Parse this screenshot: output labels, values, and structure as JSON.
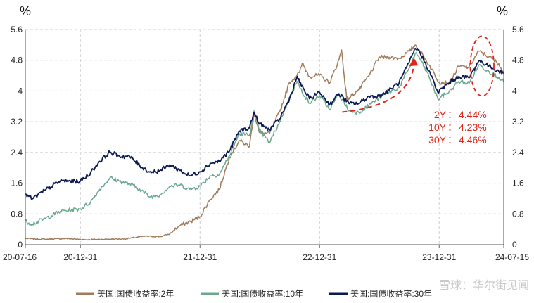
{
  "chart_data": {
    "type": "line",
    "title": "",
    "unit_left": "%",
    "unit_right": "%",
    "ylim": [
      0,
      5.6
    ],
    "yticks": [
      "0",
      "0.8",
      "1.6",
      "2.4",
      "3.2",
      "4",
      "4.8",
      "5.6"
    ],
    "yticks_right": [
      "0",
      "0.8",
      "1.6",
      "2.4",
      "3.2",
      "4",
      "4.8",
      "5.6"
    ],
    "xlim": [
      "2020-07-16",
      "2024-07-15"
    ],
    "xticks": [
      {
        "date": "2020-07-16",
        "label": "20-07-16"
      },
      {
        "date": "2020-12-31",
        "label": "20-12-31"
      },
      {
        "date": "2021-12-31",
        "label": "21-12-31"
      },
      {
        "date": "2022-12-31",
        "label": "22-12-31"
      },
      {
        "date": "2023-12-31",
        "label": "23-12-31"
      },
      {
        "date": "2024-07-15",
        "label": "24-07-15"
      }
    ],
    "grid": true,
    "legend_position": "bottom",
    "series": [
      {
        "name": "美国:国债收益率:2年",
        "color": "#a07c5c",
        "points": [
          [
            "2020-07-16",
            0.16
          ],
          [
            "2020-09-15",
            0.14
          ],
          [
            "2020-11-15",
            0.16
          ],
          [
            "2021-01-15",
            0.13
          ],
          [
            "2021-03-15",
            0.14
          ],
          [
            "2021-05-15",
            0.15
          ],
          [
            "2021-07-15",
            0.22
          ],
          [
            "2021-09-01",
            0.21
          ],
          [
            "2021-09-30",
            0.28
          ],
          [
            "2021-10-31",
            0.5
          ],
          [
            "2021-12-01",
            0.6
          ],
          [
            "2021-12-31",
            0.73
          ],
          [
            "2022-01-31",
            1.18
          ],
          [
            "2022-02-28",
            1.44
          ],
          [
            "2022-03-31",
            2.28
          ],
          [
            "2022-04-30",
            2.71
          ],
          [
            "2022-05-31",
            2.56
          ],
          [
            "2022-06-14",
            3.43
          ],
          [
            "2022-06-30",
            2.92
          ],
          [
            "2022-07-31",
            2.89
          ],
          [
            "2022-08-31",
            3.45
          ],
          [
            "2022-09-30",
            4.22
          ],
          [
            "2022-10-31",
            4.48
          ],
          [
            "2022-11-08",
            4.72
          ],
          [
            "2022-11-30",
            4.38
          ],
          [
            "2022-12-31",
            4.41
          ],
          [
            "2023-01-31",
            4.21
          ],
          [
            "2023-02-28",
            4.81
          ],
          [
            "2023-03-08",
            5.07
          ],
          [
            "2023-03-24",
            3.78
          ],
          [
            "2023-04-30",
            4.04
          ],
          [
            "2023-05-31",
            4.4
          ],
          [
            "2023-06-30",
            4.87
          ],
          [
            "2023-07-31",
            4.88
          ],
          [
            "2023-08-31",
            4.85
          ],
          [
            "2023-09-30",
            5.03
          ],
          [
            "2023-10-19",
            5.2
          ],
          [
            "2023-10-31",
            5.07
          ],
          [
            "2023-11-30",
            4.68
          ],
          [
            "2023-12-31",
            4.23
          ],
          [
            "2024-01-31",
            4.21
          ],
          [
            "2024-02-29",
            4.64
          ],
          [
            "2024-03-31",
            4.62
          ],
          [
            "2024-04-30",
            5.04
          ],
          [
            "2024-05-31",
            4.89
          ],
          [
            "2024-06-30",
            4.71
          ],
          [
            "2024-07-15",
            4.44
          ]
        ]
      },
      {
        "name": "美国:国债收益率:10年",
        "color": "#6aa88e",
        "points": [
          [
            "2020-07-16",
            0.61
          ],
          [
            "2020-08-06",
            0.54
          ],
          [
            "2020-09-15",
            0.68
          ],
          [
            "2020-10-31",
            0.87
          ],
          [
            "2020-12-31",
            0.93
          ],
          [
            "2021-01-31",
            1.11
          ],
          [
            "2021-02-28",
            1.44
          ],
          [
            "2021-03-31",
            1.74
          ],
          [
            "2021-04-30",
            1.65
          ],
          [
            "2021-05-31",
            1.58
          ],
          [
            "2021-06-30",
            1.45
          ],
          [
            "2021-07-31",
            1.24
          ],
          [
            "2021-08-31",
            1.3
          ],
          [
            "2021-09-30",
            1.52
          ],
          [
            "2021-10-31",
            1.55
          ],
          [
            "2021-11-30",
            1.44
          ],
          [
            "2021-12-31",
            1.52
          ],
          [
            "2022-01-31",
            1.79
          ],
          [
            "2022-02-28",
            1.83
          ],
          [
            "2022-03-31",
            2.32
          ],
          [
            "2022-04-30",
            2.89
          ],
          [
            "2022-05-31",
            2.85
          ],
          [
            "2022-06-14",
            3.48
          ],
          [
            "2022-06-30",
            2.98
          ],
          [
            "2022-07-31",
            2.65
          ],
          [
            "2022-08-31",
            3.19
          ],
          [
            "2022-09-30",
            3.83
          ],
          [
            "2022-10-24",
            4.25
          ],
          [
            "2022-10-31",
            4.1
          ],
          [
            "2022-11-30",
            3.68
          ],
          [
            "2022-12-31",
            3.88
          ],
          [
            "2023-01-31",
            3.52
          ],
          [
            "2023-02-28",
            3.92
          ],
          [
            "2023-03-31",
            3.48
          ],
          [
            "2023-04-30",
            3.44
          ],
          [
            "2023-05-31",
            3.64
          ],
          [
            "2023-06-30",
            3.81
          ],
          [
            "2023-07-31",
            3.97
          ],
          [
            "2023-08-31",
            4.09
          ],
          [
            "2023-09-30",
            4.59
          ],
          [
            "2023-10-19",
            4.98
          ],
          [
            "2023-10-31",
            4.88
          ],
          [
            "2023-11-30",
            4.37
          ],
          [
            "2023-12-27",
            3.79
          ],
          [
            "2024-01-31",
            3.99
          ],
          [
            "2024-02-29",
            4.25
          ],
          [
            "2024-03-31",
            4.2
          ],
          [
            "2024-04-30",
            4.68
          ],
          [
            "2024-05-31",
            4.51
          ],
          [
            "2024-06-30",
            4.36
          ],
          [
            "2024-07-15",
            4.23
          ]
        ]
      },
      {
        "name": "美国:国债收益率:30年",
        "color": "#0d1a52",
        "points": [
          [
            "2020-07-16",
            1.32
          ],
          [
            "2020-08-06",
            1.19
          ],
          [
            "2020-09-15",
            1.42
          ],
          [
            "2020-10-31",
            1.66
          ],
          [
            "2020-12-31",
            1.65
          ],
          [
            "2021-01-31",
            1.87
          ],
          [
            "2021-02-28",
            2.17
          ],
          [
            "2021-03-31",
            2.41
          ],
          [
            "2021-04-30",
            2.3
          ],
          [
            "2021-05-31",
            2.29
          ],
          [
            "2021-06-30",
            2.06
          ],
          [
            "2021-07-31",
            1.89
          ],
          [
            "2021-08-31",
            1.93
          ],
          [
            "2021-09-30",
            2.08
          ],
          [
            "2021-10-31",
            1.93
          ],
          [
            "2021-11-30",
            1.79
          ],
          [
            "2021-12-31",
            1.9
          ],
          [
            "2022-01-31",
            2.11
          ],
          [
            "2022-02-28",
            2.17
          ],
          [
            "2022-03-31",
            2.44
          ],
          [
            "2022-04-30",
            2.96
          ],
          [
            "2022-05-31",
            3.04
          ],
          [
            "2022-06-14",
            3.44
          ],
          [
            "2022-06-30",
            3.14
          ],
          [
            "2022-07-31",
            3.0
          ],
          [
            "2022-08-31",
            3.27
          ],
          [
            "2022-09-30",
            3.79
          ],
          [
            "2022-10-24",
            4.38
          ],
          [
            "2022-10-31",
            4.22
          ],
          [
            "2022-11-30",
            3.8
          ],
          [
            "2022-12-31",
            3.97
          ],
          [
            "2023-01-31",
            3.65
          ],
          [
            "2023-02-28",
            3.93
          ],
          [
            "2023-03-31",
            3.67
          ],
          [
            "2023-04-30",
            3.68
          ],
          [
            "2023-05-31",
            3.86
          ],
          [
            "2023-06-30",
            3.86
          ],
          [
            "2023-07-31",
            4.02
          ],
          [
            "2023-08-31",
            4.22
          ],
          [
            "2023-09-30",
            4.73
          ],
          [
            "2023-10-19",
            5.11
          ],
          [
            "2023-10-31",
            5.04
          ],
          [
            "2023-11-30",
            4.53
          ],
          [
            "2023-12-27",
            3.96
          ],
          [
            "2024-01-31",
            4.22
          ],
          [
            "2024-02-29",
            4.38
          ],
          [
            "2024-03-31",
            4.34
          ],
          [
            "2024-04-30",
            4.79
          ],
          [
            "2024-05-31",
            4.65
          ],
          [
            "2024-06-30",
            4.51
          ],
          [
            "2024-07-15",
            4.46
          ]
        ]
      }
    ],
    "annotations": [
      {
        "label": "2Y",
        "value": "4.44%"
      },
      {
        "label": "10Y",
        "value": "4.23%"
      },
      {
        "label": "30Y",
        "value": "4.46%"
      }
    ],
    "annotation_separator": "：",
    "annotation_color": "#e0261b",
    "arrow": {
      "from": [
        "2023-03-10",
        3.45
      ],
      "to": [
        "2023-10-15",
        4.7
      ]
    },
    "ellipse": {
      "center": [
        "2024-05-10",
        4.65
      ],
      "dx_days": 36,
      "dy": 0.78
    }
  },
  "watermark": "雪球：华尔街见闻"
}
